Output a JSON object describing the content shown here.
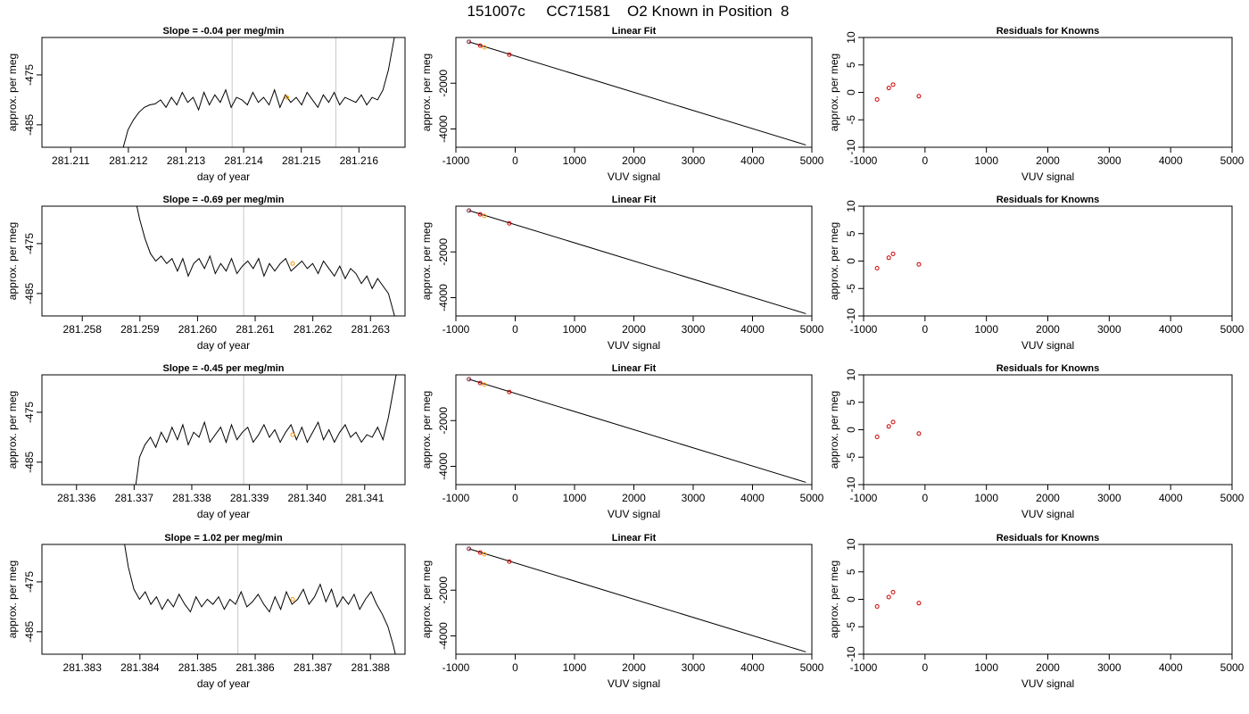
{
  "figure": {
    "title": "151007c     CC71581    O2 Known in Position  8"
  },
  "colors": {
    "trace": "#000000",
    "vline": "#c8c8c8",
    "highlight": "#ff9900",
    "residual": "#cc0000",
    "first_point": "#7a1f3d"
  },
  "chart_data": [
    {
      "type": "line",
      "row": 0,
      "panel": "timeseries",
      "title": "Slope =  -0.04  per meg/min",
      "xlabel": "day of year",
      "ylabel": "approx. per meg",
      "xlim": [
        281.2105,
        281.2168
      ],
      "xticks": [
        "281.211",
        "281.212",
        "281.213",
        "281.214",
        "281.215",
        "281.216"
      ],
      "ylim": [
        -489.5,
        -467.5
      ],
      "yticks": [
        "-475",
        "-485"
      ],
      "vlines": [
        281.2138,
        281.2156
      ],
      "highlight": {
        "x": 281.21475,
        "y": -479.5
      },
      "series": [
        {
          "x_start": 281.2119,
          "x_end": 281.2167,
          "shape": "a",
          "y": [
            -490,
            -486,
            -484,
            -482.5,
            -481.5,
            -481,
            -480.8,
            -480,
            -481.5,
            -479.5,
            -481,
            -478.5,
            -480.5,
            -479.5,
            -482,
            -478.5,
            -481,
            -479,
            -480.5,
            -478,
            -481.5,
            -479.5,
            -480,
            -481,
            -478.5,
            -480.5,
            -479.5,
            -481,
            -478,
            -481.5,
            -479,
            -480.5,
            -479.5,
            -481,
            -478.5,
            -480,
            -481.5,
            -479,
            -480.5,
            -478.5,
            -481,
            -479.5,
            -480,
            -480.5,
            -479,
            -481,
            -479.5,
            -480,
            -478,
            -474,
            -468,
            -462
          ]
        }
      ]
    },
    {
      "type": "line",
      "row": 0,
      "panel": "linearfit",
      "title": "Linear Fit",
      "xlabel": "VUV signal",
      "ylabel": "approx. per meg",
      "xlim": [
        -1000,
        5000
      ],
      "xticks": [
        "-1000",
        "0",
        "1000",
        "2000",
        "3000",
        "4000",
        "5000"
      ],
      "ylim": [
        -4800,
        0
      ],
      "yticks": [
        "-2000",
        "-4000"
      ],
      "line": [
        [
          -780,
          -190
        ],
        [
          4900,
          -4700
        ]
      ],
      "points": [
        {
          "x": -780,
          "y": -190,
          "kind": "first"
        },
        {
          "x": -590,
          "y": -355,
          "kind": "normal"
        },
        {
          "x": -520,
          "y": -430,
          "kind": "highlight"
        },
        {
          "x": -100,
          "y": -750,
          "kind": "normal"
        }
      ]
    },
    {
      "type": "scatter",
      "row": 0,
      "panel": "residuals",
      "title": "Residuals for Knowns",
      "xlabel": "VUV signal",
      "ylabel": "approx. per meg",
      "xlim": [
        -1000,
        5000
      ],
      "xticks": [
        "-1000",
        "0",
        "1000",
        "2000",
        "3000",
        "4000",
        "5000"
      ],
      "ylim": [
        -10,
        10
      ],
      "yticks": [
        "-10",
        "-5",
        "0",
        "5",
        "10"
      ],
      "points": [
        {
          "x": -780,
          "y": -1.3
        },
        {
          "x": -590,
          "y": 0.8
        },
        {
          "x": -520,
          "y": 1.4
        },
        {
          "x": -100,
          "y": -0.7
        }
      ]
    },
    {
      "type": "line",
      "row": 1,
      "panel": "timeseries",
      "title": "Slope =  -0.69  per meg/min",
      "xlabel": "day of year",
      "ylabel": "approx. per meg",
      "xlim": [
        281.2573,
        281.2636
      ],
      "xticks": [
        "281.258",
        "281.259",
        "281.260",
        "281.261",
        "281.262",
        "281.263"
      ],
      "ylim": [
        -489.5,
        -467.5
      ],
      "yticks": [
        "-475",
        "-485"
      ],
      "vlines": [
        281.2608,
        281.2625
      ],
      "highlight": {
        "x": 281.26165,
        "y": -479
      },
      "series": [
        {
          "x_start": 281.2589,
          "x_end": 281.2635,
          "shape": "b",
          "y": [
            -465,
            -470,
            -474,
            -477,
            -478.5,
            -477.5,
            -479,
            -478,
            -480.5,
            -478,
            -481.5,
            -479,
            -478,
            -480,
            -477.5,
            -481,
            -479,
            -480.5,
            -478,
            -481,
            -479.5,
            -478.5,
            -480,
            -478,
            -481.5,
            -479,
            -480.5,
            -479,
            -478,
            -480.5,
            -479.5,
            -478.5,
            -480,
            -479,
            -481,
            -478.5,
            -480,
            -481.5,
            -479.5,
            -482,
            -480,
            -481,
            -483,
            -481.5,
            -484,
            -482,
            -483.5,
            -485,
            -489,
            -493
          ]
        }
      ]
    },
    {
      "type": "line",
      "row": 1,
      "panel": "linearfit",
      "title": "Linear Fit",
      "xlabel": "VUV signal",
      "ylabel": "approx. per meg",
      "xlim": [
        -1000,
        5000
      ],
      "xticks": [
        "-1000",
        "0",
        "1000",
        "2000",
        "3000",
        "4000",
        "5000"
      ],
      "ylim": [
        -4800,
        0
      ],
      "yticks": [
        "-2000",
        "-4000"
      ],
      "line": [
        [
          -780,
          -190
        ],
        [
          4900,
          -4700
        ]
      ],
      "points": [
        {
          "x": -780,
          "y": -190,
          "kind": "first"
        },
        {
          "x": -590,
          "y": -355,
          "kind": "normal"
        },
        {
          "x": -520,
          "y": -430,
          "kind": "highlight"
        },
        {
          "x": -100,
          "y": -750,
          "kind": "normal"
        }
      ]
    },
    {
      "type": "scatter",
      "row": 1,
      "panel": "residuals",
      "title": "Residuals for Knowns",
      "xlabel": "VUV signal",
      "ylabel": "approx. per meg",
      "xlim": [
        -1000,
        5000
      ],
      "xticks": [
        "-1000",
        "0",
        "1000",
        "2000",
        "3000",
        "4000",
        "5000"
      ],
      "ylim": [
        -10,
        10
      ],
      "yticks": [
        "-10",
        "-5",
        "0",
        "5",
        "10"
      ],
      "points": [
        {
          "x": -780,
          "y": -1.3
        },
        {
          "x": -590,
          "y": 0.6
        },
        {
          "x": -520,
          "y": 1.3
        },
        {
          "x": -100,
          "y": -0.6
        }
      ]
    },
    {
      "type": "line",
      "row": 2,
      "panel": "timeseries",
      "title": "Slope =  -0.45  per meg/min",
      "xlabel": "day of year",
      "ylabel": "approx. per meg",
      "xlim": [
        281.3354,
        281.3417
      ],
      "xticks": [
        "281.336",
        "281.337",
        "281.338",
        "281.339",
        "281.340",
        "281.341"
      ],
      "ylim": [
        -489.5,
        -467.5
      ],
      "yticks": [
        "-475",
        "-485"
      ],
      "vlines": [
        281.3389,
        281.3406
      ],
      "highlight": {
        "x": 281.33975,
        "y": -479.5
      },
      "series": [
        {
          "x_start": 281.337,
          "x_end": 281.3416,
          "shape": "a",
          "y": [
            -492,
            -484,
            -481.5,
            -480,
            -482,
            -479,
            -481,
            -478,
            -480.5,
            -477.5,
            -481.5,
            -479,
            -480,
            -477,
            -481,
            -479.5,
            -478,
            -481,
            -477.5,
            -480.5,
            -479,
            -478,
            -481,
            -479.5,
            -477.5,
            -480,
            -478.5,
            -481,
            -479,
            -477.5,
            -480.5,
            -478,
            -481,
            -479,
            -477,
            -480.5,
            -478.5,
            -481,
            -479,
            -477.5,
            -480,
            -479,
            -481,
            -479.5,
            -480,
            -478,
            -480.5,
            -476,
            -470,
            -464
          ]
        }
      ]
    },
    {
      "type": "line",
      "row": 2,
      "panel": "linearfit",
      "title": "Linear Fit",
      "xlabel": "VUV signal",
      "ylabel": "approx. per meg",
      "xlim": [
        -1000,
        5000
      ],
      "xticks": [
        "-1000",
        "0",
        "1000",
        "2000",
        "3000",
        "4000",
        "5000"
      ],
      "ylim": [
        -4800,
        0
      ],
      "yticks": [
        "-2000",
        "-4000"
      ],
      "line": [
        [
          -780,
          -190
        ],
        [
          4900,
          -4700
        ]
      ],
      "points": [
        {
          "x": -780,
          "y": -190,
          "kind": "first"
        },
        {
          "x": -590,
          "y": -355,
          "kind": "normal"
        },
        {
          "x": -520,
          "y": -430,
          "kind": "highlight"
        },
        {
          "x": -100,
          "y": -750,
          "kind": "normal"
        }
      ]
    },
    {
      "type": "scatter",
      "row": 2,
      "panel": "residuals",
      "title": "Residuals for Knowns",
      "xlabel": "VUV signal",
      "ylabel": "approx. per meg",
      "xlim": [
        -1000,
        5000
      ],
      "xticks": [
        "-1000",
        "0",
        "1000",
        "2000",
        "3000",
        "4000",
        "5000"
      ],
      "ylim": [
        -10,
        10
      ],
      "yticks": [
        "-10",
        "-5",
        "0",
        "5",
        "10"
      ],
      "points": [
        {
          "x": -780,
          "y": -1.3
        },
        {
          "x": -590,
          "y": 0.6
        },
        {
          "x": -520,
          "y": 1.4
        },
        {
          "x": -100,
          "y": -0.7
        }
      ]
    },
    {
      "type": "line",
      "row": 3,
      "panel": "timeseries",
      "title": "Slope =  1.02  per meg/min",
      "xlabel": "day of year",
      "ylabel": "approx. per meg",
      "xlim": [
        281.3823,
        281.3886
      ],
      "xticks": [
        "281.383",
        "281.384",
        "281.385",
        "281.386",
        "281.387",
        "281.388"
      ],
      "ylim": [
        -489.5,
        -467.5
      ],
      "yticks": [
        "-475",
        "-485"
      ],
      "vlines": [
        281.3857,
        281.3875
      ],
      "highlight": {
        "x": 281.38665,
        "y": -478.5
      },
      "series": [
        {
          "x_start": 281.3837,
          "x_end": 281.3885,
          "shape": "b",
          "y": [
            -465,
            -472,
            -476.5,
            -478.5,
            -477,
            -479.5,
            -478,
            -480.5,
            -478.5,
            -480,
            -477.5,
            -479.5,
            -481,
            -478,
            -480,
            -478.5,
            -479.5,
            -478,
            -480.5,
            -478.5,
            -479.5,
            -477,
            -480,
            -479,
            -477.5,
            -479.5,
            -481,
            -478,
            -480.5,
            -477,
            -479.5,
            -478.5,
            -476.5,
            -479.5,
            -478,
            -475.5,
            -479,
            -476.5,
            -480,
            -478,
            -479.5,
            -477.5,
            -480.5,
            -478.5,
            -477,
            -479.5,
            -481.5,
            -484,
            -488,
            -493
          ]
        }
      ]
    },
    {
      "type": "line",
      "row": 3,
      "panel": "linearfit",
      "title": "Linear Fit",
      "xlabel": "VUV signal",
      "ylabel": "approx. per meg",
      "xlim": [
        -1000,
        5000
      ],
      "xticks": [
        "-1000",
        "0",
        "1000",
        "2000",
        "3000",
        "4000",
        "5000"
      ],
      "ylim": [
        -4800,
        0
      ],
      "yticks": [
        "-2000",
        "-4000"
      ],
      "line": [
        [
          -780,
          -190
        ],
        [
          4900,
          -4700
        ]
      ],
      "points": [
        {
          "x": -780,
          "y": -190,
          "kind": "first"
        },
        {
          "x": -590,
          "y": -355,
          "kind": "normal"
        },
        {
          "x": -520,
          "y": -430,
          "kind": "highlight"
        },
        {
          "x": -100,
          "y": -750,
          "kind": "normal"
        }
      ]
    },
    {
      "type": "scatter",
      "row": 3,
      "panel": "residuals",
      "title": "Residuals for Knowns",
      "xlabel": "VUV signal",
      "ylabel": "approx. per meg",
      "xlim": [
        -1000,
        5000
      ],
      "xticks": [
        "-1000",
        "0",
        "1000",
        "2000",
        "3000",
        "4000",
        "5000"
      ],
      "ylim": [
        -10,
        10
      ],
      "yticks": [
        "-10",
        "-5",
        "0",
        "5",
        "10"
      ],
      "points": [
        {
          "x": -780,
          "y": -1.3
        },
        {
          "x": -590,
          "y": 0.4
        },
        {
          "x": -520,
          "y": 1.3
        },
        {
          "x": -100,
          "y": -0.7
        }
      ]
    }
  ]
}
